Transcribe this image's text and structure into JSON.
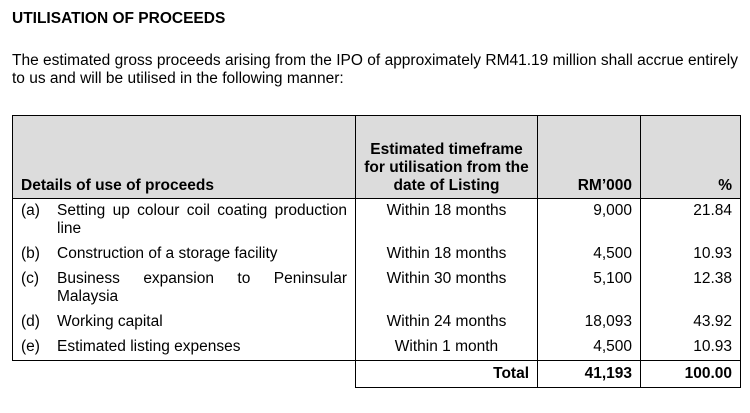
{
  "header": {
    "title": "UTILISATION OF PROCEEDS"
  },
  "intro": "The estimated gross proceeds arising from the IPO of approximately RM41.19 million shall accrue entirely to us and will be utilised in the following manner:",
  "table": {
    "columns": [
      "Details of use of proceeds",
      "Estimated timeframe for utilisation from the date of Listing",
      "RM’000",
      "%"
    ],
    "rows": [
      [
        "(a)",
        "Setting up colour coil coating production line",
        "Within 18 months",
        "9,000",
        "21.84"
      ],
      [
        "(b)",
        "Construction of a storage facility",
        "Within 18 months",
        "4,500",
        "10.93"
      ],
      [
        "(c)",
        "Business expansion to Peninsular Malaysia",
        "Within 30 months",
        "5,100",
        "12.38"
      ],
      [
        "(d)",
        "Working capital",
        "Within 24 months",
        "18,093",
        "43.92"
      ],
      [
        "(e)",
        "Estimated listing expenses",
        "Within 1 month",
        "4,500",
        "10.93"
      ]
    ],
    "total": [
      "Total",
      "41,193",
      "100.00"
    ]
  }
}
